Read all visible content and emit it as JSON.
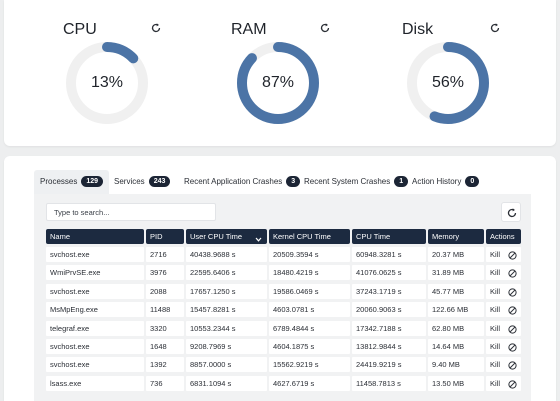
{
  "gauges": [
    {
      "title": "CPU",
      "value": "13%",
      "percent": 0.13,
      "color": "#4c74a6",
      "track": "#f0f0f0"
    },
    {
      "title": "RAM",
      "value": "87%",
      "percent": 0.87,
      "color": "#4c74a6",
      "track": "#f0f0f0"
    },
    {
      "title": "Disk",
      "value": "56%",
      "percent": 0.56,
      "color": "#4c74a6",
      "track": "#f0f0f0"
    }
  ],
  "tabs": [
    {
      "label": "Processes",
      "count": "129",
      "active": true
    },
    {
      "label": "Services",
      "count": "243",
      "active": false
    },
    {
      "label": "Recent Application Crashes",
      "count": "3",
      "active": false
    },
    {
      "label": "Recent System Crashes",
      "count": "1",
      "active": false
    },
    {
      "label": "Action History",
      "count": "0",
      "active": false
    }
  ],
  "search": {
    "placeholder": "Type to search..."
  },
  "table": {
    "columns": [
      "Name",
      "PID",
      "User CPU Time",
      "Kernel CPU Time",
      "CPU Time",
      "Memory",
      "Actions"
    ],
    "sorted_column": "User CPU Time",
    "kill_label": "Kill",
    "rows": [
      [
        "svchost.exe",
        "2716",
        "40438.9688 s",
        "20509.3594 s",
        "60948.3281 s",
        "20.37 MB"
      ],
      [
        "WmiPrvSE.exe",
        "3976",
        "22595.6406 s",
        "18480.4219 s",
        "41076.0625 s",
        "31.89 MB"
      ],
      [
        "svchost.exe",
        "2088",
        "17657.1250 s",
        "19586.0469 s",
        "37243.1719 s",
        "45.77 MB"
      ],
      [
        "MsMpEng.exe",
        "11488",
        "15457.8281 s",
        "4603.0781 s",
        "20060.9063 s",
        "122.66 MB"
      ],
      [
        "telegraf.exe",
        "3320",
        "10553.2344 s",
        "6789.4844 s",
        "17342.7188 s",
        "62.80 MB"
      ],
      [
        "svchost.exe",
        "1648",
        "9208.7969 s",
        "4604.1875 s",
        "13812.9844 s",
        "14.64 MB"
      ],
      [
        "svchost.exe",
        "1392",
        "8857.0000 s",
        "15562.9219 s",
        "24419.9219 s",
        "9.40 MB"
      ],
      [
        "lsass.exe",
        "736",
        "6831.1094 s",
        "4627.6719 s",
        "11458.7813 s",
        "13.50 MB"
      ]
    ]
  },
  "colors": {
    "header_bg": "#1c2a40",
    "accent": "#4c74a6",
    "badge_bg": "#1c2535"
  }
}
